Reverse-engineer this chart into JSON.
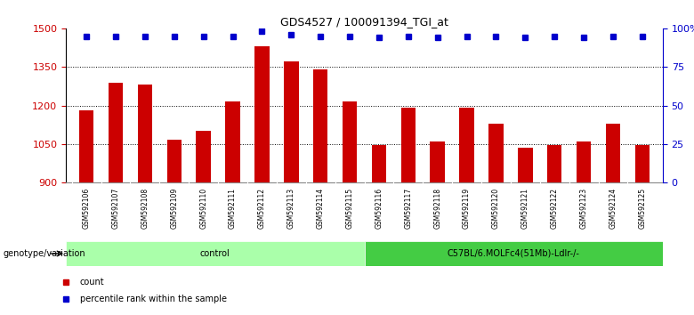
{
  "title": "GDS4527 / 100091394_TGI_at",
  "samples": [
    "GSM592106",
    "GSM592107",
    "GSM592108",
    "GSM592109",
    "GSM592110",
    "GSM592111",
    "GSM592112",
    "GSM592113",
    "GSM592114",
    "GSM592115",
    "GSM592116",
    "GSM592117",
    "GSM592118",
    "GSM592119",
    "GSM592120",
    "GSM592121",
    "GSM592122",
    "GSM592123",
    "GSM592124",
    "GSM592125"
  ],
  "counts": [
    1182,
    1290,
    1280,
    1068,
    1100,
    1215,
    1430,
    1370,
    1340,
    1215,
    1045,
    1190,
    1060,
    1190,
    1130,
    1035,
    1048,
    1060,
    1130,
    1048
  ],
  "percentile_ranks": [
    95,
    95,
    95,
    95,
    95,
    95,
    98,
    96,
    95,
    95,
    94,
    95,
    94,
    95,
    95,
    94,
    95,
    94,
    95,
    95
  ],
  "bar_color": "#cc0000",
  "dot_color": "#0000cc",
  "ylim_left": [
    900,
    1500
  ],
  "ylim_right": [
    0,
    100
  ],
  "yticks_left": [
    900,
    1050,
    1200,
    1350,
    1500
  ],
  "yticks_right": [
    0,
    25,
    50,
    75,
    100
  ],
  "ytick_labels_right": [
    "0",
    "25",
    "50",
    "75",
    "100%"
  ],
  "groups": [
    {
      "label": "control",
      "start": 0,
      "end": 10,
      "color": "#aaffaa"
    },
    {
      "label": "C57BL/6.MOLFc4(51Mb)-Ldlr-/-",
      "start": 10,
      "end": 20,
      "color": "#44cc44"
    }
  ],
  "genotype_label": "genotype/variation",
  "legend_count_label": "count",
  "legend_pct_label": "percentile rank within the sample",
  "bg_color": "#ffffff",
  "grid_color": "#000000",
  "tick_label_color_left": "#cc0000",
  "tick_label_color_right": "#0000cc",
  "bar_width": 0.5,
  "xticklabel_bg": "#cccccc",
  "n_control": 10
}
